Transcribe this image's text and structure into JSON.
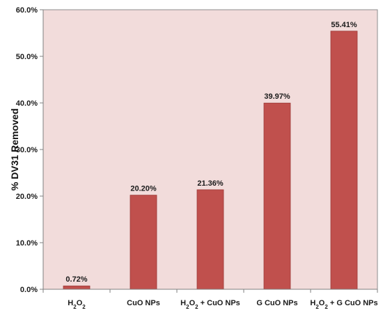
{
  "chart_data": {
    "type": "bar",
    "ylabel": "% DV31 Removed",
    "ylim": [
      0,
      60
    ],
    "y_tick_format": "percent_2dp",
    "yticks": [
      "0.0%",
      "10.0%",
      "20.0%",
      "30.0%",
      "40.0%",
      "50.0%",
      "60.0%"
    ],
    "categories": [
      {
        "parts": [
          {
            "t": "H"
          },
          {
            "t": "2",
            "sub": true
          },
          {
            "t": "O"
          },
          {
            "t": "2",
            "sub": true
          }
        ]
      },
      {
        "parts": [
          {
            "t": "CuO NPs"
          }
        ]
      },
      {
        "parts": [
          {
            "t": "H"
          },
          {
            "t": "2",
            "sub": true
          },
          {
            "t": "O"
          },
          {
            "t": "2",
            "sub": true
          },
          {
            "t": " +   CuO NPs"
          }
        ]
      },
      {
        "parts": [
          {
            "t": "G CuO NPs"
          }
        ]
      },
      {
        "parts": [
          {
            "t": "H"
          },
          {
            "t": "2",
            "sub": true
          },
          {
            "t": "O"
          },
          {
            "t": "2",
            "sub": true
          },
          {
            "t": " +  G CuO NPs"
          }
        ]
      }
    ],
    "values": [
      0.72,
      20.2,
      21.36,
      39.97,
      55.41
    ],
    "data_labels": [
      "0.72%",
      "20.20%",
      "21.36%",
      "39.97%",
      "55.41%"
    ],
    "grid": false,
    "legend": "none",
    "colors": {
      "bar": "#c0504d",
      "bar_edge": "#9b3a37",
      "plot_bg": "#f2dcdb",
      "axis": "#7f7f7f"
    }
  }
}
